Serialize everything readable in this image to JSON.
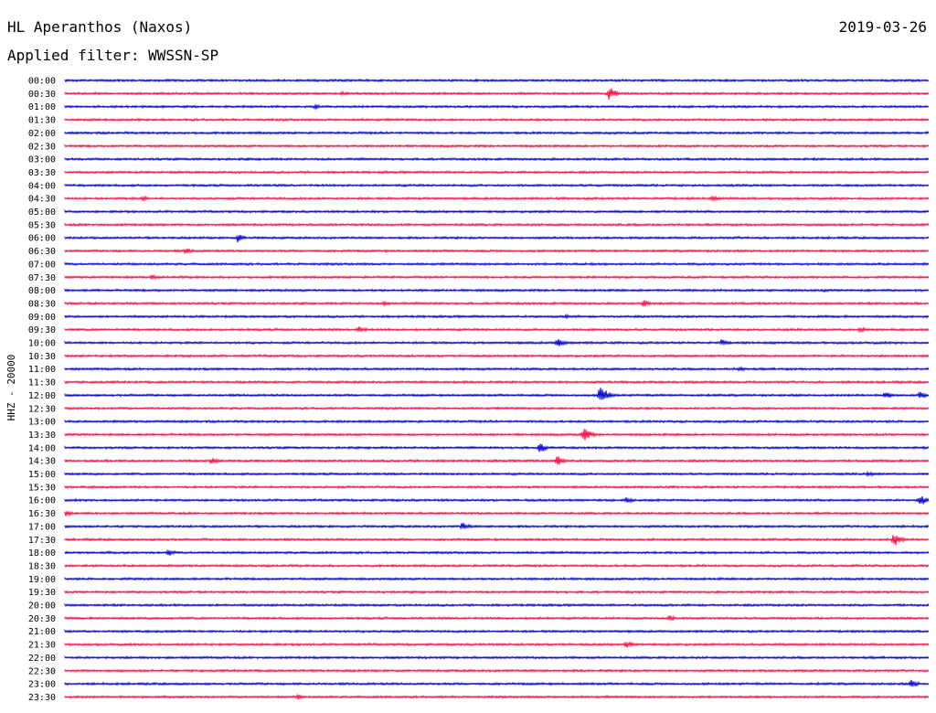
{
  "header": {
    "station": "HL Aperanthos (Naxos)",
    "date": "2019-03-26",
    "filter": "Applied filter: WWSSN-SP"
  },
  "chart_data": {
    "type": "line",
    "ylabel": "HHZ - 20000",
    "rows": [
      "00:00",
      "00:30",
      "01:00",
      "01:30",
      "02:00",
      "02:30",
      "03:00",
      "03:30",
      "04:00",
      "04:30",
      "05:00",
      "05:30",
      "06:00",
      "06:30",
      "07:00",
      "07:30",
      "08:00",
      "08:30",
      "09:00",
      "09:30",
      "10:00",
      "10:30",
      "11:00",
      "11:30",
      "12:00",
      "12:30",
      "13:00",
      "13:30",
      "14:00",
      "14:30",
      "15:00",
      "15:30",
      "16:00",
      "16:30",
      "17:00",
      "17:30",
      "18:00",
      "18:30",
      "19:00",
      "19:30",
      "20:00",
      "20:30",
      "21:00",
      "21:30",
      "22:00",
      "22:30",
      "23:00",
      "23:30"
    ],
    "colors": [
      "#0000cc",
      "#ee1144"
    ],
    "events": [
      {
        "row": 1,
        "pos": 0.63,
        "amp": 8
      },
      {
        "row": 1,
        "pos": 0.32,
        "amp": 3
      },
      {
        "row": 2,
        "pos": 0.29,
        "amp": 3
      },
      {
        "row": 9,
        "pos": 0.09,
        "amp": 3
      },
      {
        "row": 9,
        "pos": 0.75,
        "amp": 3
      },
      {
        "row": 12,
        "pos": 0.2,
        "amp": 5
      },
      {
        "row": 13,
        "pos": 0.14,
        "amp": 4
      },
      {
        "row": 15,
        "pos": 0.1,
        "amp": 3
      },
      {
        "row": 16,
        "pos": 0.88,
        "amp": 2
      },
      {
        "row": 17,
        "pos": 0.37,
        "amp": 3
      },
      {
        "row": 17,
        "pos": 0.67,
        "amp": 4
      },
      {
        "row": 18,
        "pos": 0.58,
        "amp": 3
      },
      {
        "row": 19,
        "pos": 0.34,
        "amp": 5
      },
      {
        "row": 19,
        "pos": 0.92,
        "amp": 4
      },
      {
        "row": 20,
        "pos": 0.57,
        "amp": 6
      },
      {
        "row": 20,
        "pos": 0.76,
        "amp": 4
      },
      {
        "row": 22,
        "pos": 0.78,
        "amp": 3
      },
      {
        "row": 24,
        "pos": 0.62,
        "amp": 12
      },
      {
        "row": 24,
        "pos": 0.95,
        "amp": 5
      },
      {
        "row": 24,
        "pos": 0.99,
        "amp": 4
      },
      {
        "row": 27,
        "pos": 0.6,
        "amp": 9
      },
      {
        "row": 28,
        "pos": 0.55,
        "amp": 6
      },
      {
        "row": 29,
        "pos": 0.57,
        "amp": 6
      },
      {
        "row": 29,
        "pos": 0.17,
        "amp": 4
      },
      {
        "row": 30,
        "pos": 0.93,
        "amp": 3
      },
      {
        "row": 32,
        "pos": 0.65,
        "amp": 4
      },
      {
        "row": 32,
        "pos": 0.99,
        "amp": 7
      },
      {
        "row": 33,
        "pos": 0.0,
        "amp": 4
      },
      {
        "row": 34,
        "pos": 0.46,
        "amp": 5
      },
      {
        "row": 35,
        "pos": 0.96,
        "amp": 8
      },
      {
        "row": 36,
        "pos": 0.12,
        "amp": 4
      },
      {
        "row": 41,
        "pos": 0.7,
        "amp": 4
      },
      {
        "row": 43,
        "pos": 0.65,
        "amp": 4
      },
      {
        "row": 46,
        "pos": 0.98,
        "amp": 5
      },
      {
        "row": 47,
        "pos": 0.27,
        "amp": 3
      }
    ]
  }
}
